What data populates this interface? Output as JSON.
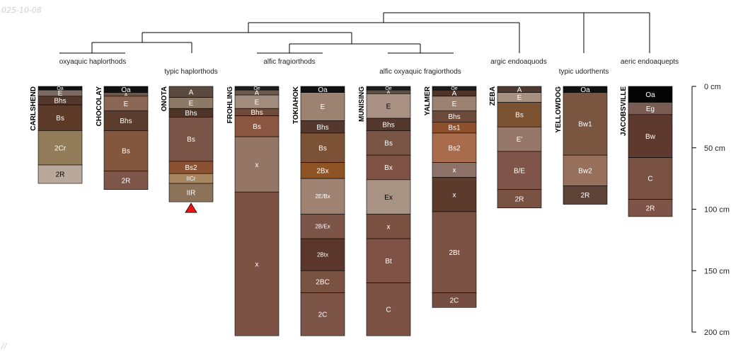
{
  "corner_text": {
    "top_left": "025-10-08",
    "bottom_left": "//"
  },
  "chart_data": {
    "type": "soil-profile-sketch",
    "depth_axis": {
      "unit": "cm",
      "min": 0,
      "max": 200,
      "ticks": [
        {
          "value": 0,
          "label": "0 cm"
        },
        {
          "value": 50,
          "label": "50 cm"
        },
        {
          "value": 100,
          "label": "100 cm"
        },
        {
          "value": 150,
          "label": "150 cm"
        },
        {
          "value": 200,
          "label": "200 cm"
        }
      ]
    },
    "profiles": [
      {
        "name": "CARLSHEND",
        "horizons": [
          {
            "name": "Oa",
            "top": 0,
            "bottom": 3,
            "color": "#111111",
            "text": "#ffffff"
          },
          {
            "name": "E",
            "top": 3,
            "bottom": 8,
            "color": "#7a6a63",
            "text": "#ffffff"
          },
          {
            "name": "Bhs",
            "top": 8,
            "bottom": 15,
            "color": "#54382d",
            "text": "#ffffff"
          },
          {
            "name": "Bs",
            "top": 15,
            "bottom": 36,
            "color": "#5c3a27",
            "text": "#ffffff"
          },
          {
            "name": "2Cr",
            "top": 36,
            "bottom": 64,
            "color": "#927c59",
            "text": "#ffffff"
          },
          {
            "name": "2R",
            "top": 64,
            "bottom": 79,
            "color": "#b9a89c",
            "text": "#000000"
          }
        ]
      },
      {
        "name": "CHOCOLAY",
        "horizons": [
          {
            "name": "Oa",
            "top": 0,
            "bottom": 5,
            "color": "#111111",
            "text": "#ffffff"
          },
          {
            "name": "A",
            "top": 5,
            "bottom": 8,
            "color": "#6e5548",
            "text": "#ffffff"
          },
          {
            "name": "E",
            "top": 8,
            "bottom": 20,
            "color": "#8a6754",
            "text": "#ffffff"
          },
          {
            "name": "Bhs",
            "top": 20,
            "bottom": 36,
            "color": "#5c3c2d",
            "text": "#ffffff"
          },
          {
            "name": "Bs",
            "top": 36,
            "bottom": 69,
            "color": "#82573e",
            "text": "#ffffff"
          },
          {
            "name": "2R",
            "top": 69,
            "bottom": 84,
            "color": "#7d5549",
            "text": "#ffffff"
          }
        ]
      },
      {
        "name": "ONOTA",
        "truncated": true,
        "horizons": [
          {
            "name": "A",
            "top": 0,
            "bottom": 9,
            "color": "#5a4a40",
            "text": "#ffffff"
          },
          {
            "name": "E",
            "top": 9,
            "bottom": 18,
            "color": "#8d7a66",
            "text": "#ffffff"
          },
          {
            "name": "Bhs",
            "top": 18,
            "bottom": 25,
            "color": "#4e3429",
            "text": "#ffffff"
          },
          {
            "name": "Bs",
            "top": 25,
            "bottom": 61,
            "color": "#7a5548",
            "text": "#ffffff"
          },
          {
            "name": "Bs2",
            "top": 61,
            "bottom": 71,
            "color": "#8a5232",
            "text": "#ffffff"
          },
          {
            "name": "IICr",
            "top": 71,
            "bottom": 79,
            "color": "#a88760",
            "text": "#ffffff"
          },
          {
            "name": "IIR",
            "top": 79,
            "bottom": 94,
            "color": "#8c7258",
            "text": "#ffffff"
          }
        ]
      },
      {
        "name": "FROHLING",
        "horizons": [
          {
            "name": "Oe",
            "top": 0,
            "bottom": 3,
            "color": "#1c1c1c",
            "text": "#ffffff"
          },
          {
            "name": "A",
            "top": 3,
            "bottom": 7,
            "color": "#6d584d",
            "text": "#ffffff"
          },
          {
            "name": "E",
            "top": 7,
            "bottom": 18,
            "color": "#a08b7d",
            "text": "#ffffff"
          },
          {
            "name": "Bhs",
            "top": 18,
            "bottom": 24,
            "color": "#6e4a3b",
            "text": "#ffffff"
          },
          {
            "name": "Bs",
            "top": 24,
            "bottom": 41,
            "color": "#8a5640",
            "text": "#ffffff"
          },
          {
            "name": "x",
            "top": 41,
            "bottom": 86,
            "color": "#947566",
            "text": "#ffffff"
          },
          {
            "name": "x",
            "top": 86,
            "bottom": 203,
            "color": "#7c5244",
            "text": "#ffffff"
          }
        ]
      },
      {
        "name": "TOKIAHOK",
        "horizons": [
          {
            "name": "Oa",
            "top": 0,
            "bottom": 5,
            "color": "#111111",
            "text": "#ffffff"
          },
          {
            "name": "E",
            "top": 5,
            "bottom": 28,
            "color": "#9c8271",
            "text": "#ffffff"
          },
          {
            "name": "Bhs",
            "top": 28,
            "bottom": 38,
            "color": "#54382d",
            "text": "#ffffff"
          },
          {
            "name": "Bs",
            "top": 38,
            "bottom": 62,
            "color": "#7c5236",
            "text": "#ffffff"
          },
          {
            "name": "2Bx",
            "top": 62,
            "bottom": 75,
            "color": "#8e5425",
            "text": "#ffffff"
          },
          {
            "name": "2E/Bx",
            "top": 75,
            "bottom": 104,
            "color": "#a08272",
            "text": "#ffffff"
          },
          {
            "name": "2B/Ex",
            "top": 104,
            "bottom": 124,
            "color": "#7d5548",
            "text": "#ffffff"
          },
          {
            "name": "2Btx",
            "top": 124,
            "bottom": 150,
            "color": "#5a362b",
            "text": "#ffffff"
          },
          {
            "name": "2BC",
            "top": 150,
            "bottom": 168,
            "color": "#7a5242",
            "text": "#ffffff"
          },
          {
            "name": "2C",
            "top": 168,
            "bottom": 203,
            "color": "#7d5548",
            "text": "#ffffff"
          }
        ]
      },
      {
        "name": "MUNISING",
        "horizons": [
          {
            "name": "Oe",
            "top": 0,
            "bottom": 3,
            "color": "#1c1c1c",
            "text": "#ffffff"
          },
          {
            "name": "A",
            "top": 3,
            "bottom": 6,
            "color": "#5f5045",
            "text": "#ffffff"
          },
          {
            "name": "E",
            "top": 6,
            "bottom": 26,
            "color": "#a89082",
            "text": "#000000"
          },
          {
            "name": "Bhs",
            "top": 26,
            "bottom": 36,
            "color": "#54382d",
            "text": "#ffffff"
          },
          {
            "name": "Bs",
            "top": 36,
            "bottom": 56,
            "color": "#7a5545",
            "text": "#ffffff"
          },
          {
            "name": "Bx",
            "top": 56,
            "bottom": 76,
            "color": "#7e5245",
            "text": "#ffffff"
          },
          {
            "name": "Ex",
            "top": 76,
            "bottom": 104,
            "color": "#a89384",
            "text": "#000000"
          },
          {
            "name": "x",
            "top": 104,
            "bottom": 124,
            "color": "#7a5040",
            "text": "#ffffff"
          },
          {
            "name": "Bt",
            "top": 124,
            "bottom": 160,
            "color": "#7e5244",
            "text": "#ffffff"
          },
          {
            "name": "C",
            "top": 160,
            "bottom": 203,
            "color": "#7c5244",
            "text": "#ffffff"
          }
        ]
      },
      {
        "name": "YALMER",
        "horizons": [
          {
            "name": "Oe",
            "top": 0,
            "bottom": 3,
            "color": "#1c1c1c",
            "text": "#ffffff"
          },
          {
            "name": "A",
            "top": 3,
            "bottom": 8,
            "color": "#4e3429",
            "text": "#ffffff"
          },
          {
            "name": "E",
            "top": 8,
            "bottom": 20,
            "color": "#9c8070",
            "text": "#ffffff"
          },
          {
            "name": "Bhs",
            "top": 20,
            "bottom": 29,
            "color": "#6e4a3b",
            "text": "#ffffff"
          },
          {
            "name": "Bs1",
            "top": 29,
            "bottom": 38,
            "color": "#8e4f2c",
            "text": "#ffffff"
          },
          {
            "name": "Bs2",
            "top": 38,
            "bottom": 62,
            "color": "#a86c4d",
            "text": "#ffffff"
          },
          {
            "name": "x",
            "top": 62,
            "bottom": 74,
            "color": "#8c7268",
            "text": "#ffffff"
          },
          {
            "name": "x",
            "top": 74,
            "bottom": 102,
            "color": "#5c3a2c",
            "text": "#ffffff"
          },
          {
            "name": "2Bt",
            "top": 102,
            "bottom": 168,
            "color": "#7c5244",
            "text": "#ffffff"
          },
          {
            "name": "2C",
            "top": 168,
            "bottom": 180,
            "color": "#744c40",
            "text": "#ffffff"
          }
        ]
      },
      {
        "name": "ZEBA",
        "horizons": [
          {
            "name": "A",
            "top": 0,
            "bottom": 5,
            "color": "#4e3a30",
            "text": "#ffffff"
          },
          {
            "name": "E",
            "top": 5,
            "bottom": 13,
            "color": "#a89080",
            "text": "#ffffff"
          },
          {
            "name": "Bs",
            "top": 13,
            "bottom": 33,
            "color": "#7b5232",
            "text": "#ffffff"
          },
          {
            "name": "E'",
            "top": 33,
            "bottom": 53,
            "color": "#967668",
            "text": "#ffffff"
          },
          {
            "name": "B/E",
            "top": 53,
            "bottom": 84,
            "color": "#7e5548",
            "text": "#ffffff"
          },
          {
            "name": "2R",
            "top": 84,
            "bottom": 99,
            "color": "#7a5242",
            "text": "#ffffff"
          }
        ]
      },
      {
        "name": "YELLOWDOG",
        "horizons": [
          {
            "name": "Oa",
            "top": 0,
            "bottom": 5,
            "color": "#111111",
            "text": "#ffffff"
          },
          {
            "name": "Bw1",
            "top": 5,
            "bottom": 56,
            "color": "#7a5540",
            "text": "#ffffff"
          },
          {
            "name": "Bw2",
            "top": 56,
            "bottom": 81,
            "color": "#96705a",
            "text": "#ffffff"
          },
          {
            "name": "2R",
            "top": 81,
            "bottom": 96,
            "color": "#5c4336",
            "text": "#ffffff"
          }
        ]
      },
      {
        "name": "JACOBSVILLE",
        "horizons": [
          {
            "name": "Oa",
            "top": 0,
            "bottom": 13,
            "color": "#050505",
            "text": "#ffffff"
          },
          {
            "name": "Eg",
            "top": 13,
            "bottom": 23,
            "color": "#7a5c54",
            "text": "#ffffff"
          },
          {
            "name": "Bw",
            "top": 23,
            "bottom": 58,
            "color": "#5e3a2e",
            "text": "#ffffff"
          },
          {
            "name": "C",
            "top": 58,
            "bottom": 92,
            "color": "#7a5244",
            "text": "#ffffff"
          },
          {
            "name": "2R",
            "top": 92,
            "bottom": 106,
            "color": "#7d5447",
            "text": "#ffffff"
          }
        ]
      }
    ],
    "groups": [
      {
        "label": "oxyaquic haplorthods",
        "members": [
          0,
          1
        ]
      },
      {
        "label": "typic haplorthods",
        "members": [
          2
        ]
      },
      {
        "label": "alfic fragiorthods",
        "members": [
          3,
          4
        ]
      },
      {
        "label": "alfic oxyaquic fragiorthods",
        "members": [
          5,
          6
        ]
      },
      {
        "label": "argic endoaquods",
        "members": [
          7
        ]
      },
      {
        "label": "typic udorthents",
        "members": [
          8
        ]
      },
      {
        "label": "aeric endoaquepts",
        "members": [
          9
        ]
      }
    ]
  }
}
